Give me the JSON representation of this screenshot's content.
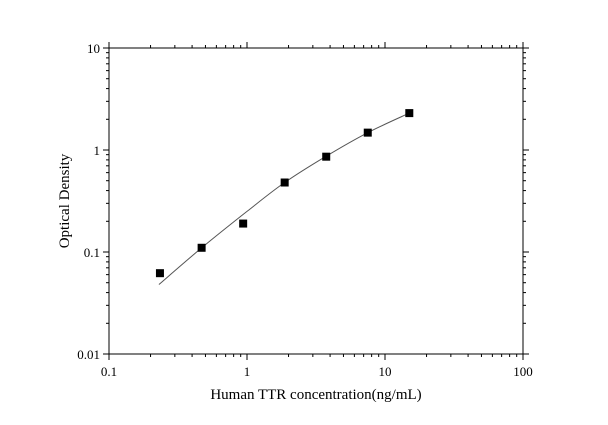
{
  "chart_data": {
    "type": "scatter",
    "xlabel": "Human TTR concentration(ng/mL)",
    "ylabel": "Optical Density",
    "xscale": "log",
    "yscale": "log",
    "xlim": [
      0.1,
      100
    ],
    "ylim": [
      0.01,
      10
    ],
    "x_ticks": [
      "0.1",
      "1",
      "10",
      "100"
    ],
    "y_ticks": [
      "0.01",
      "0.1",
      "1",
      "10"
    ],
    "grid": false,
    "points": [
      {
        "x": 0.234,
        "y": 0.062
      },
      {
        "x": 0.469,
        "y": 0.11
      },
      {
        "x": 0.938,
        "y": 0.19
      },
      {
        "x": 1.875,
        "y": 0.48
      },
      {
        "x": 3.75,
        "y": 0.86
      },
      {
        "x": 7.5,
        "y": 1.48
      },
      {
        "x": 15,
        "y": 2.3
      }
    ],
    "fit_curve": [
      [
        0.23,
        0.048
      ],
      [
        0.47,
        0.11
      ],
      [
        1.0,
        0.25
      ],
      [
        1.875,
        0.48
      ],
      [
        3.75,
        0.87
      ],
      [
        7.5,
        1.48
      ],
      [
        15,
        2.3
      ]
    ],
    "marker_color": "#000000",
    "line_color": "#555555"
  }
}
